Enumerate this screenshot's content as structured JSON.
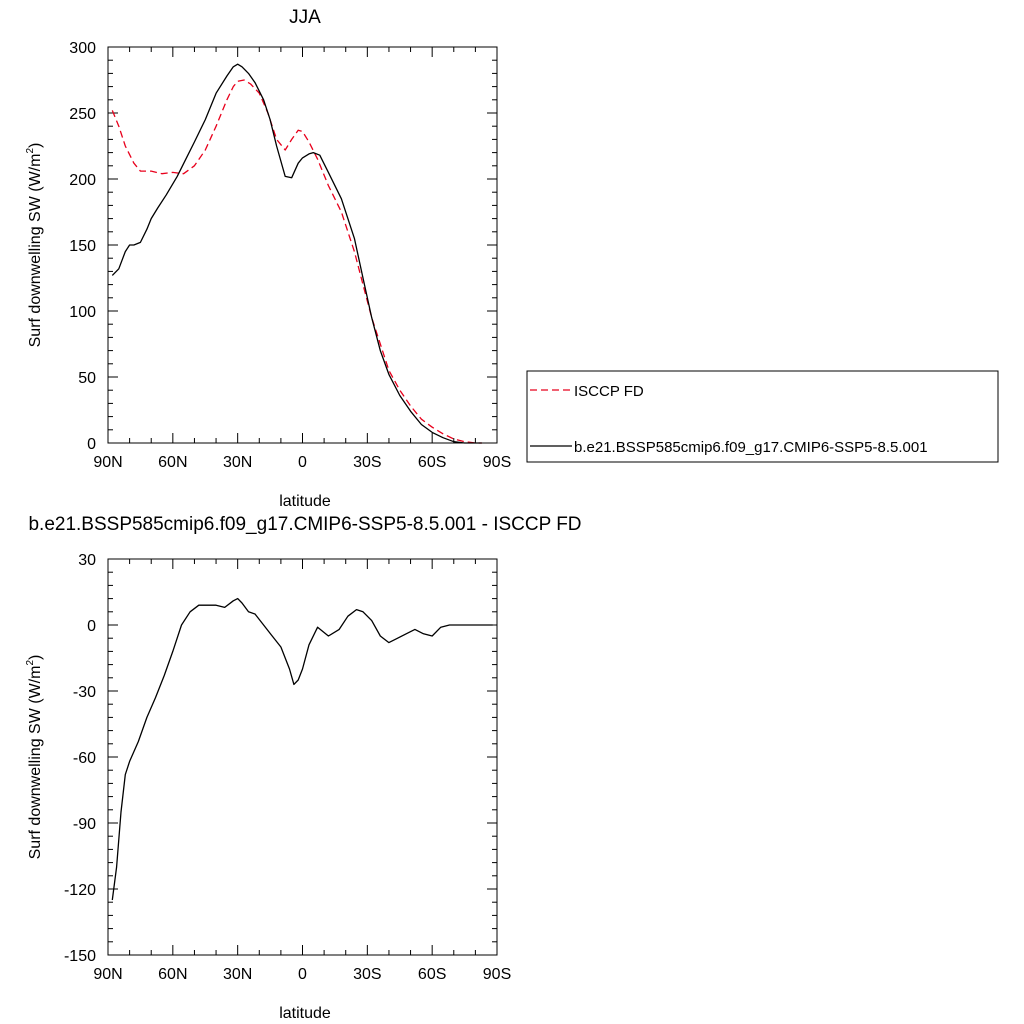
{
  "chart_data": [
    {
      "type": "line",
      "title": "JJA",
      "xlabel": "latitude",
      "ylabel": "Surf downwelling SW (W/m",
      "ylabel_sup": "2",
      "ylabel_end": ")",
      "xlim": [
        90,
        -90
      ],
      "ylim": [
        0,
        300
      ],
      "xticks": [
        90,
        60,
        30,
        0,
        -30,
        -60,
        -90
      ],
      "xtick_labels": [
        "90N",
        "60N",
        "30N",
        "0",
        "30S",
        "60S",
        "90S"
      ],
      "yticks": [
        0,
        50,
        100,
        150,
        200,
        250,
        300
      ],
      "ytick_labels": [
        "0",
        "50",
        "100",
        "150",
        "200",
        "250",
        "300"
      ],
      "legend": "right",
      "series": [
        {
          "name": "ISCCP FD",
          "color": "#e8001c",
          "dash": "dashed",
          "x": [
            88,
            85,
            82,
            78,
            75,
            70,
            65,
            60,
            55,
            50,
            45,
            40,
            35,
            32,
            30,
            27,
            24,
            20,
            16,
            12,
            8,
            5,
            2,
            0,
            -3,
            -7,
            -12,
            -18,
            -24,
            -28,
            -32,
            -36,
            -40,
            -45,
            -50,
            -55,
            -60,
            -65,
            -70,
            -75,
            -80,
            -83
          ],
          "y": [
            252,
            240,
            225,
            212,
            206,
            206,
            204,
            205,
            204,
            210,
            222,
            240,
            260,
            270,
            274,
            275,
            272,
            265,
            250,
            230,
            222,
            230,
            237,
            236,
            228,
            215,
            195,
            175,
            145,
            120,
            95,
            75,
            55,
            40,
            28,
            18,
            12,
            7,
            3,
            1,
            0,
            0
          ]
        },
        {
          "name": "b.e21.BSSP585cmip6.f09_g17.CMIP6-SSP5-8.5.001",
          "color": "#000000",
          "dash": "solid",
          "x": [
            88,
            85,
            82,
            80,
            78,
            75,
            72,
            70,
            67,
            63,
            58,
            54,
            50,
            45,
            40,
            35,
            32,
            30,
            28,
            25,
            22,
            18,
            15,
            12,
            8,
            5,
            2,
            0,
            -3,
            -5,
            -8,
            -12,
            -18,
            -24,
            -28,
            -32,
            -36,
            -40,
            -45,
            -50,
            -55,
            -60,
            -65,
            -70,
            -75,
            -80,
            -83
          ],
          "y": [
            127,
            132,
            145,
            150,
            150,
            152,
            162,
            170,
            178,
            188,
            202,
            215,
            228,
            245,
            265,
            278,
            285,
            287,
            285,
            280,
            273,
            260,
            245,
            225,
            202,
            201,
            212,
            216,
            219,
            220,
            218,
            205,
            185,
            155,
            125,
            95,
            70,
            52,
            36,
            24,
            14,
            8,
            4,
            1,
            0,
            0,
            0
          ]
        }
      ]
    },
    {
      "type": "line",
      "title": "b.e21.BSSP585cmip6.f09_g17.CMIP6-SSP5-8.5.001 - ISCCP FD",
      "xlabel": "latitude",
      "ylabel": "Surf downwelling SW (W/m",
      "ylabel_sup": "2",
      "ylabel_end": ")",
      "xlim": [
        90,
        -90
      ],
      "ylim": [
        -150,
        30
      ],
      "xticks": [
        90,
        60,
        30,
        0,
        -30,
        -60,
        -90
      ],
      "xtick_labels": [
        "90N",
        "60N",
        "30N",
        "0",
        "30S",
        "60S",
        "90S"
      ],
      "yticks": [
        -150,
        -120,
        -90,
        -60,
        -30,
        0,
        30
      ],
      "ytick_labels": [
        "-150",
        "-120",
        "-90",
        "-60",
        "-30",
        "0",
        "30"
      ],
      "series": [
        {
          "color": "#000000",
          "dash": "solid",
          "x": [
            88,
            86,
            84,
            82,
            80,
            76,
            72,
            68,
            64,
            60,
            56,
            52,
            48,
            45,
            40,
            36,
            32,
            30,
            28,
            25,
            22,
            18,
            14,
            10,
            6,
            4,
            2,
            0,
            -3,
            -7,
            -12,
            -17,
            -21,
            -25,
            -28,
            -32,
            -36,
            -40,
            -44,
            -48,
            -52,
            -56,
            -60,
            -64,
            -68,
            -72,
            -76,
            -80,
            -84,
            -88
          ],
          "y": [
            -125,
            -110,
            -85,
            -68,
            -62,
            -53,
            -42,
            -33,
            -23,
            -12,
            0,
            6,
            9,
            9,
            9,
            8,
            11,
            12,
            10,
            6,
            5,
            0,
            -5,
            -10,
            -20,
            -27,
            -25,
            -20,
            -9,
            -1,
            -5,
            -2,
            4,
            7,
            6,
            2,
            -5,
            -8,
            -6,
            -4,
            -2,
            -4,
            -5,
            -1,
            0,
            0,
            0,
            0,
            0,
            0
          ]
        }
      ]
    }
  ]
}
